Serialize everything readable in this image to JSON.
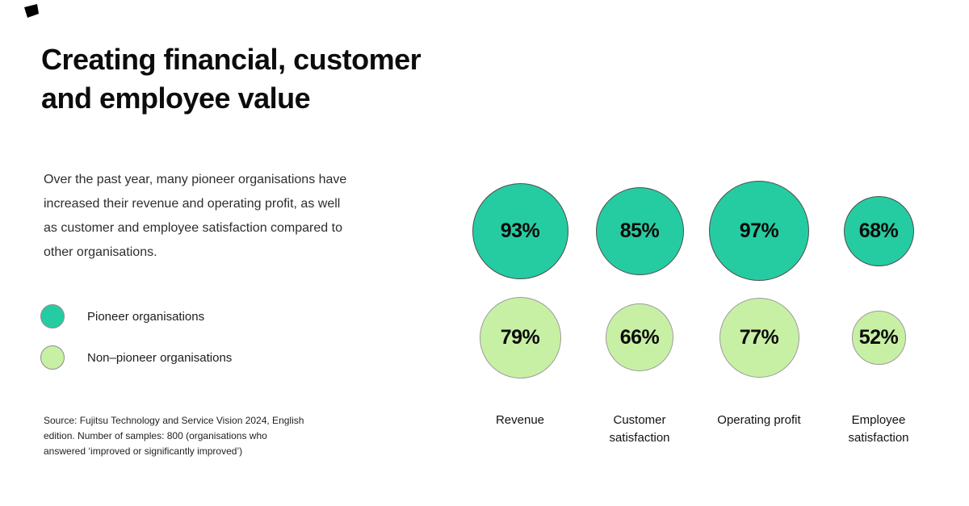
{
  "header": {
    "title_line1": "Creating financial, customer",
    "title_line2": "and employee value"
  },
  "intro": {
    "lines": [
      "Over the past year, many pioneer organisations have",
      "increased their revenue and operating profit, as well",
      "as customer and employee satisfaction compared to",
      "other organisations."
    ]
  },
  "legend": {
    "items": [
      {
        "label": "Pioneer organisations",
        "color": "#26CCA1"
      },
      {
        "label": "Non–pioneer organisations",
        "color": "#C8F0A5"
      }
    ]
  },
  "source": {
    "lines": [
      "Source: Fujitsu Technology and Service Vision 2024, English",
      "edition.  Number of samples: 800 (organisations who",
      "answered ‘improved or significantly improved’)"
    ]
  },
  "colors": {
    "pioneer": "#26CCA1",
    "non_pioneer": "#C8F0A5",
    "text": "#111111",
    "background": "#FFFFFF"
  },
  "chart_data": {
    "type": "bubble",
    "categories": [
      "Revenue",
      "Customer satisfaction",
      "Operating profit",
      "Employee satisfaction"
    ],
    "series": [
      {
        "name": "Pioneer organisations",
        "color": "#26CCA1",
        "values": [
          93,
          85,
          97,
          68
        ]
      },
      {
        "name": "Non–pioneer organisations",
        "color": "#C8F0A5",
        "values": [
          79,
          66,
          77,
          52
        ]
      }
    ],
    "unit": "%",
    "value_labels": true,
    "size_encoding": "circle diameter proportional to percentage value",
    "legend_position": "left",
    "grid": false
  }
}
